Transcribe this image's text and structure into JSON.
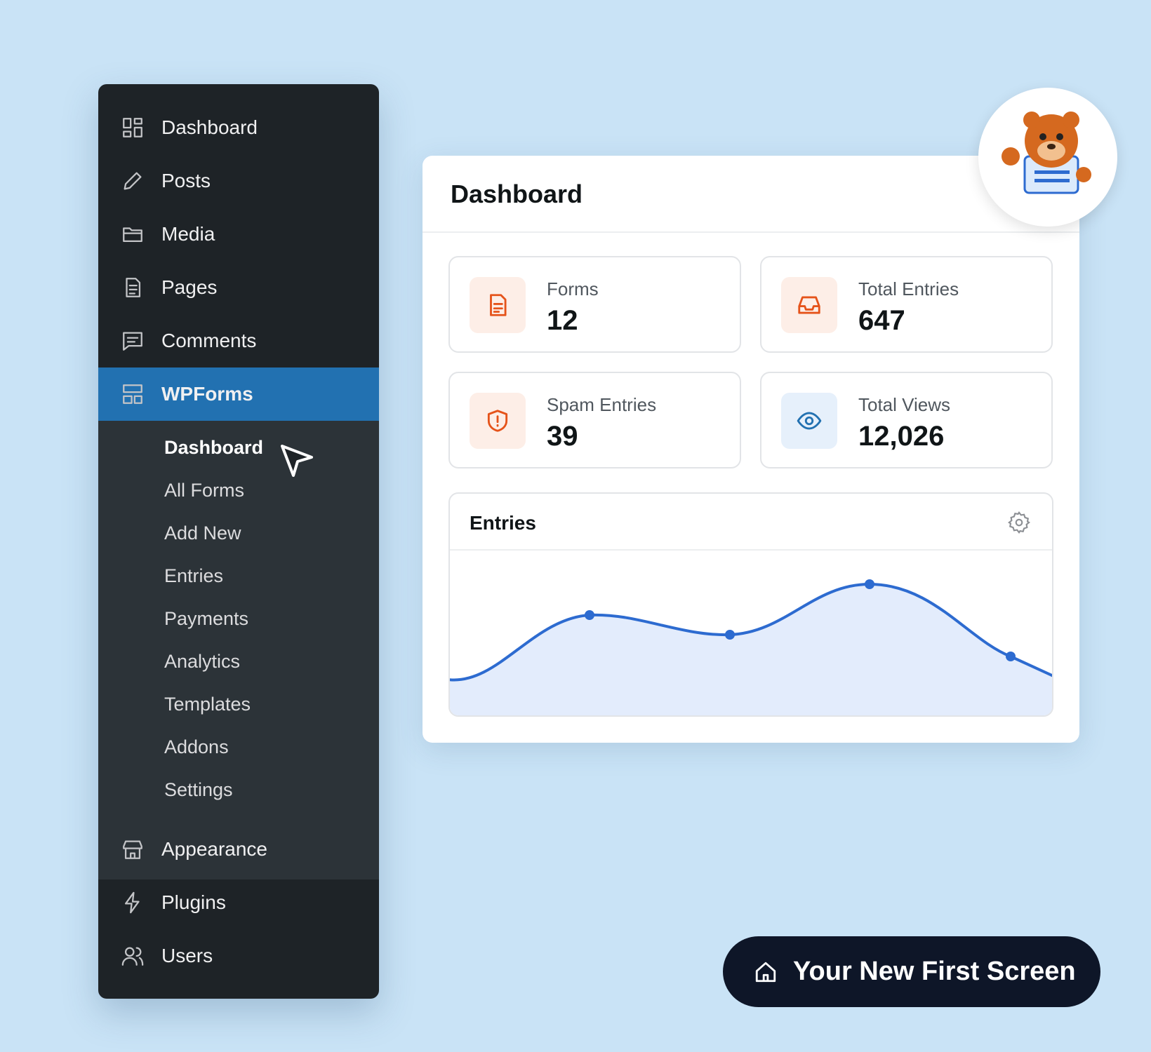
{
  "sidebar": {
    "menu": [
      "Dashboard",
      "Posts",
      "Media",
      "Pages",
      "Comments",
      "WPForms"
    ],
    "submenu": [
      "Dashboard",
      "All Forms",
      "Add New",
      "Entries",
      "Payments",
      "Analytics",
      "Templates",
      "Addons",
      "Settings"
    ],
    "menu_after": [
      "Appearance",
      "Plugins",
      "Users"
    ]
  },
  "dashboard": {
    "title": "Dashboard",
    "stats": [
      {
        "label": "Forms",
        "value": "12"
      },
      {
        "label": "Total Entries",
        "value": "647"
      },
      {
        "label": "Spam Entries",
        "value": "39"
      },
      {
        "label": "Total Views",
        "value": "12,026"
      }
    ],
    "entries_panel": {
      "title": "Entries"
    }
  },
  "button": {
    "label": "Your New First Screen"
  }
}
